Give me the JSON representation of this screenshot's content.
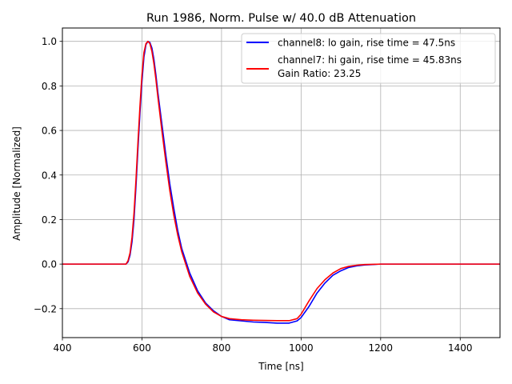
{
  "chart_data": {
    "type": "line",
    "title": "Run 1986, Norm. Pulse w/ 40.0 dB Attenuation",
    "xlabel": "Time [ns]",
    "ylabel": "Amplitude [Normalized]",
    "xlim": [
      400,
      1500
    ],
    "ylim": [
      -0.33,
      1.06
    ],
    "xticks": [
      400,
      600,
      800,
      1000,
      1200,
      1400
    ],
    "yticks": [
      -0.2,
      0.0,
      0.2,
      0.4,
      0.6,
      0.8,
      1.0
    ],
    "ytick_labels": [
      "−0.2",
      "0.0",
      "0.2",
      "0.4",
      "0.6",
      "0.8",
      "1.0"
    ],
    "grid": true,
    "legend_position": "top-right",
    "legend_extra_text": "Gain Ratio: 23.25",
    "series": [
      {
        "name": "channel8: lo gain, rise time = 47.5ns",
        "color": "#0000ff",
        "x": [
          400,
          450,
          500,
          540,
          560,
          565,
          570,
          575,
          580,
          585,
          590,
          595,
          600,
          605,
          610,
          615,
          620,
          625,
          630,
          635,
          640,
          650,
          660,
          670,
          680,
          690,
          700,
          720,
          740,
          760,
          780,
          800,
          820,
          850,
          880,
          910,
          940,
          970,
          990,
          1000,
          1020,
          1040,
          1060,
          1080,
          1100,
          1120,
          1140,
          1160,
          1180,
          1200,
          1250,
          1300,
          1350,
          1400,
          1450,
          1500
        ],
        "y": [
          0.0,
          0.0,
          0.0,
          0.0,
          0.0,
          0.01,
          0.04,
          0.1,
          0.2,
          0.35,
          0.52,
          0.68,
          0.82,
          0.93,
          0.985,
          1.0,
          0.995,
          0.97,
          0.92,
          0.85,
          0.77,
          0.63,
          0.49,
          0.36,
          0.25,
          0.15,
          0.07,
          -0.04,
          -0.12,
          -0.175,
          -0.21,
          -0.235,
          -0.25,
          -0.255,
          -0.26,
          -0.262,
          -0.265,
          -0.265,
          -0.255,
          -0.24,
          -0.19,
          -0.13,
          -0.085,
          -0.05,
          -0.03,
          -0.015,
          -0.008,
          -0.004,
          -0.002,
          0.0,
          0.0,
          0.0,
          0.0,
          0.0,
          0.0,
          0.0
        ]
      },
      {
        "name": "channel7: hi gain, rise time = 45.83ns",
        "color": "#ff0000",
        "x": [
          400,
          450,
          500,
          540,
          560,
          565,
          570,
          575,
          580,
          585,
          590,
          595,
          600,
          605,
          610,
          615,
          620,
          625,
          630,
          635,
          640,
          650,
          660,
          670,
          680,
          690,
          700,
          720,
          740,
          760,
          780,
          800,
          820,
          850,
          880,
          910,
          940,
          970,
          990,
          1000,
          1020,
          1040,
          1060,
          1080,
          1100,
          1120,
          1140,
          1160,
          1180,
          1200,
          1250,
          1300,
          1350,
          1400,
          1450,
          1500
        ],
        "y": [
          0.0,
          0.0,
          0.0,
          0.0,
          0.0,
          0.015,
          0.05,
          0.12,
          0.23,
          0.38,
          0.55,
          0.71,
          0.85,
          0.95,
          0.99,
          1.0,
          0.99,
          0.955,
          0.9,
          0.83,
          0.75,
          0.6,
          0.46,
          0.33,
          0.22,
          0.13,
          0.055,
          -0.055,
          -0.13,
          -0.18,
          -0.215,
          -0.235,
          -0.245,
          -0.25,
          -0.252,
          -0.253,
          -0.254,
          -0.254,
          -0.245,
          -0.225,
          -0.165,
          -0.11,
          -0.07,
          -0.04,
          -0.02,
          -0.01,
          -0.005,
          -0.002,
          -0.001,
          0.0,
          0.0,
          0.0,
          0.0,
          0.0,
          0.0,
          0.0
        ]
      }
    ]
  }
}
